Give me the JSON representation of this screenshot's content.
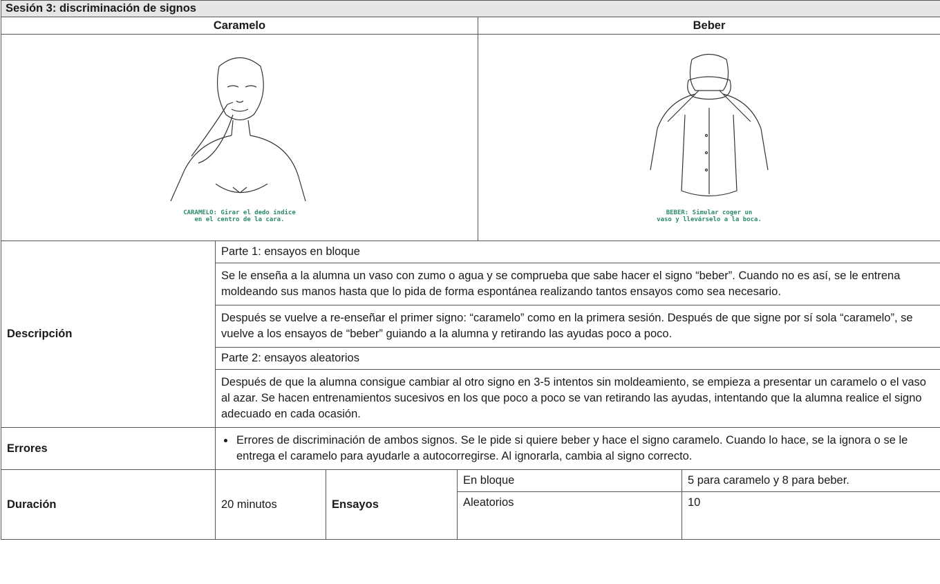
{
  "header": {
    "title": "Sesión 3: discriminación de signos"
  },
  "columns": [
    "Caramelo",
    "Beber"
  ],
  "images": [
    {
      "caption": [
        "CARAMELO: Girar el dedo índice",
        "en el centro de la cara."
      ]
    },
    {
      "caption": [
        "BEBER: Simular coger un",
        "vaso y llevárselo a la boca."
      ]
    }
  ],
  "description": {
    "label": "Descripción",
    "rows": [
      "Parte 1: ensayos en bloque",
      "Se le enseña a la alumna un vaso con zumo o agua y se comprueba que sabe hacer el signo “beber”. Cuando no es así, se le entrena moldeando sus manos hasta que lo pida de forma espontánea realizando tantos ensayos como sea necesario.",
      "Después se vuelve a re-enseñar el primer signo: “caramelo” como en la primera sesión. Después de que signe por sí sola “caramelo”, se vuelve a los ensayos de “beber” guiando a la alumna y retirando las ayudas poco a poco.",
      "Parte 2: ensayos aleatorios",
      "Después de que la alumna consigue cambiar al otro signo en 3-5 intentos sin moldeamiento, se empieza a presentar un caramelo o el vaso al azar. Se hacen entrenamientos sucesivos en los que poco a poco se van retirando las ayudas, intentando que la alumna realice el signo adecuado en cada ocasión."
    ]
  },
  "errors": {
    "label": "Errores",
    "items": [
      "Errores de discriminación de ambos signos. Se le pide si quiere beber y hace el signo caramelo. Cuando lo hace, se la ignora o se le entrega el caramelo para ayudarle a autocorregirse. Al ignorarla, cambia al signo correcto."
    ]
  },
  "duration": {
    "label": "Duración",
    "value": "20 minutos",
    "trials_label": "Ensayos",
    "trials": [
      {
        "label": "En bloque",
        "value": "5 para caramelo y 8 para beber."
      },
      {
        "label": "Aleatorios",
        "value": "10"
      }
    ]
  }
}
